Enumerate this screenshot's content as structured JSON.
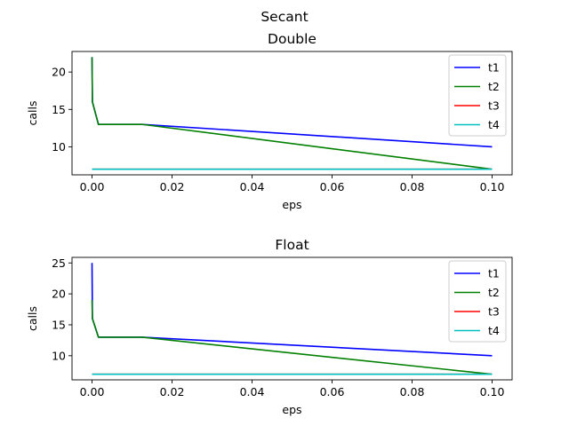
{
  "figure": {
    "suptitle": "Secant"
  },
  "chart_data": [
    {
      "type": "line",
      "title": "Double",
      "xlabel": "eps",
      "ylabel": "calls",
      "xlim": [
        -0.005,
        0.105
      ],
      "ylim": [
        6.25,
        22.75
      ],
      "xticks": [
        0.0,
        0.02,
        0.04,
        0.06,
        0.08,
        0.1
      ],
      "xtick_labels": [
        "0.00",
        "0.02",
        "0.04",
        "0.06",
        "0.08",
        "0.10"
      ],
      "yticks": [
        10,
        15,
        20
      ],
      "ytick_labels": [
        "10",
        "15",
        "20"
      ],
      "legend": "top-right",
      "grid": false,
      "series": [
        {
          "name": "t1",
          "color": "#0000ff",
          "x": [
            0.0,
            0.0001,
            0.0016,
            0.0125,
            0.1
          ],
          "y": [
            22,
            16,
            13,
            13,
            10
          ]
        },
        {
          "name": "t2",
          "color": "#008000",
          "x": [
            0.0,
            0.0001,
            0.0016,
            0.0125,
            0.1
          ],
          "y": [
            22,
            16,
            13,
            13,
            7
          ]
        },
        {
          "name": "t3",
          "color": "#ff0000",
          "x": [
            0.0,
            0.1
          ],
          "y": [
            7,
            7
          ]
        },
        {
          "name": "t4",
          "color": "#00bfbf",
          "x": [
            0.0,
            0.1
          ],
          "y": [
            7,
            7
          ]
        }
      ]
    },
    {
      "type": "line",
      "title": "Float",
      "xlabel": "eps",
      "ylabel": "calls",
      "xlim": [
        -0.005,
        0.105
      ],
      "ylim": [
        6.1,
        25.9
      ],
      "xticks": [
        0.0,
        0.02,
        0.04,
        0.06,
        0.08,
        0.1
      ],
      "xtick_labels": [
        "0.00",
        "0.02",
        "0.04",
        "0.06",
        "0.08",
        "0.10"
      ],
      "yticks": [
        10,
        15,
        20,
        25
      ],
      "ytick_labels": [
        "10",
        "15",
        "20",
        "25"
      ],
      "legend": "top-right",
      "grid": false,
      "series": [
        {
          "name": "t1",
          "color": "#0000ff",
          "x": [
            0.0,
            0.0001,
            0.0016,
            0.0125,
            0.1
          ],
          "y": [
            25,
            16,
            13,
            13,
            10
          ]
        },
        {
          "name": "t2",
          "color": "#008000",
          "x": [
            0.0,
            0.0001,
            0.0016,
            0.0125,
            0.1
          ],
          "y": [
            19,
            16,
            13,
            13,
            7
          ]
        },
        {
          "name": "t3",
          "color": "#ff0000",
          "x": [
            0.0,
            0.1
          ],
          "y": [
            7,
            7
          ]
        },
        {
          "name": "t4",
          "color": "#00bfbf",
          "x": [
            0.0,
            0.1
          ],
          "y": [
            7,
            7
          ]
        }
      ]
    }
  ]
}
